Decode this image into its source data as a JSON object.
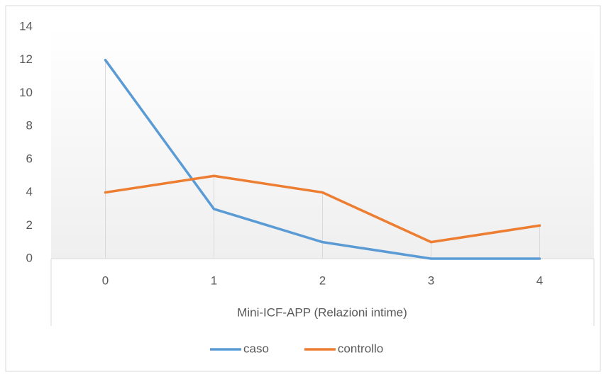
{
  "chart_data": {
    "type": "line",
    "x_label": "Mini-ICF-APP (Relazioni intime)",
    "categories": [
      "0",
      "1",
      "2",
      "3",
      "4"
    ],
    "series": [
      {
        "name": "caso",
        "color": "#5b9bd5",
        "values": [
          12,
          3,
          1,
          0,
          0
        ]
      },
      {
        "name": "controllo",
        "color": "#ed7d31",
        "values": [
          4,
          5,
          4,
          1,
          2
        ]
      }
    ],
    "ylim": [
      0,
      14
    ],
    "yticks": [
      0,
      2,
      4,
      6,
      8,
      10,
      12,
      14
    ],
    "drop_lines": true,
    "legend": "bottom"
  }
}
